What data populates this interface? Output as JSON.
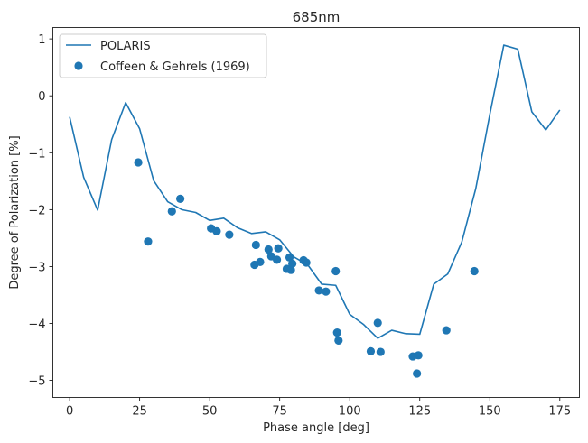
{
  "chart_data": {
    "type": "line+scatter",
    "title": "685nm",
    "xlabel": "Phase angle [deg]",
    "ylabel": "Degree of Polarization [%]",
    "xlim": [
      -6,
      182
    ],
    "ylim": [
      -5.3,
      1.2
    ],
    "xticks": [
      0,
      25,
      50,
      75,
      100,
      125,
      150,
      175
    ],
    "yticks": [
      -5,
      -4,
      -3,
      -2,
      -1,
      0,
      1
    ],
    "color": "#1f77b4",
    "legend_position": "upper-left",
    "series": [
      {
        "name": "POLARIS",
        "kind": "line",
        "x": [
          0,
          5,
          10,
          15,
          20,
          25,
          30,
          35,
          40,
          45,
          50,
          55,
          60,
          65,
          70,
          75,
          80,
          85,
          90,
          95,
          100,
          105,
          110,
          115,
          120,
          125,
          130,
          135,
          140,
          145,
          150,
          155,
          160,
          165,
          170,
          175
        ],
        "y": [
          -0.37,
          -1.43,
          -2.01,
          -0.77,
          -0.12,
          -0.58,
          -1.49,
          -1.86,
          -2.0,
          -2.05,
          -2.19,
          -2.15,
          -2.32,
          -2.42,
          -2.39,
          -2.53,
          -2.83,
          -2.97,
          -3.31,
          -3.33,
          -3.84,
          -4.02,
          -4.26,
          -4.12,
          -4.18,
          -4.19,
          -3.31,
          -3.13,
          -2.57,
          -1.63,
          -0.33,
          0.89,
          0.82,
          -0.28,
          -0.6,
          -0.25
        ]
      },
      {
        "name": "Coffeen & Gehrels (1969)",
        "kind": "scatter",
        "x": [
          24.5,
          28,
          36.5,
          39.5,
          50.5,
          52.5,
          57,
          66,
          66.5,
          68,
          71,
          72,
          74,
          74.5,
          77.5,
          78.5,
          79,
          79.5,
          83.5,
          84.5,
          89,
          91.5,
          95,
          95.5,
          96,
          107.5,
          110,
          111,
          122.5,
          124,
          124.5,
          134.5,
          144.5
        ],
        "y": [
          -1.17,
          -2.56,
          -2.03,
          -1.81,
          -2.33,
          -2.38,
          -2.44,
          -2.97,
          -2.62,
          -2.92,
          -2.7,
          -2.82,
          -2.88,
          -2.68,
          -3.04,
          -2.84,
          -3.06,
          -2.95,
          -2.89,
          -2.93,
          -3.42,
          -3.44,
          -3.08,
          -4.16,
          -4.3,
          -4.49,
          -3.99,
          -4.5,
          -4.58,
          -4.88,
          -4.56,
          -4.12,
          -3.08
        ]
      }
    ]
  }
}
